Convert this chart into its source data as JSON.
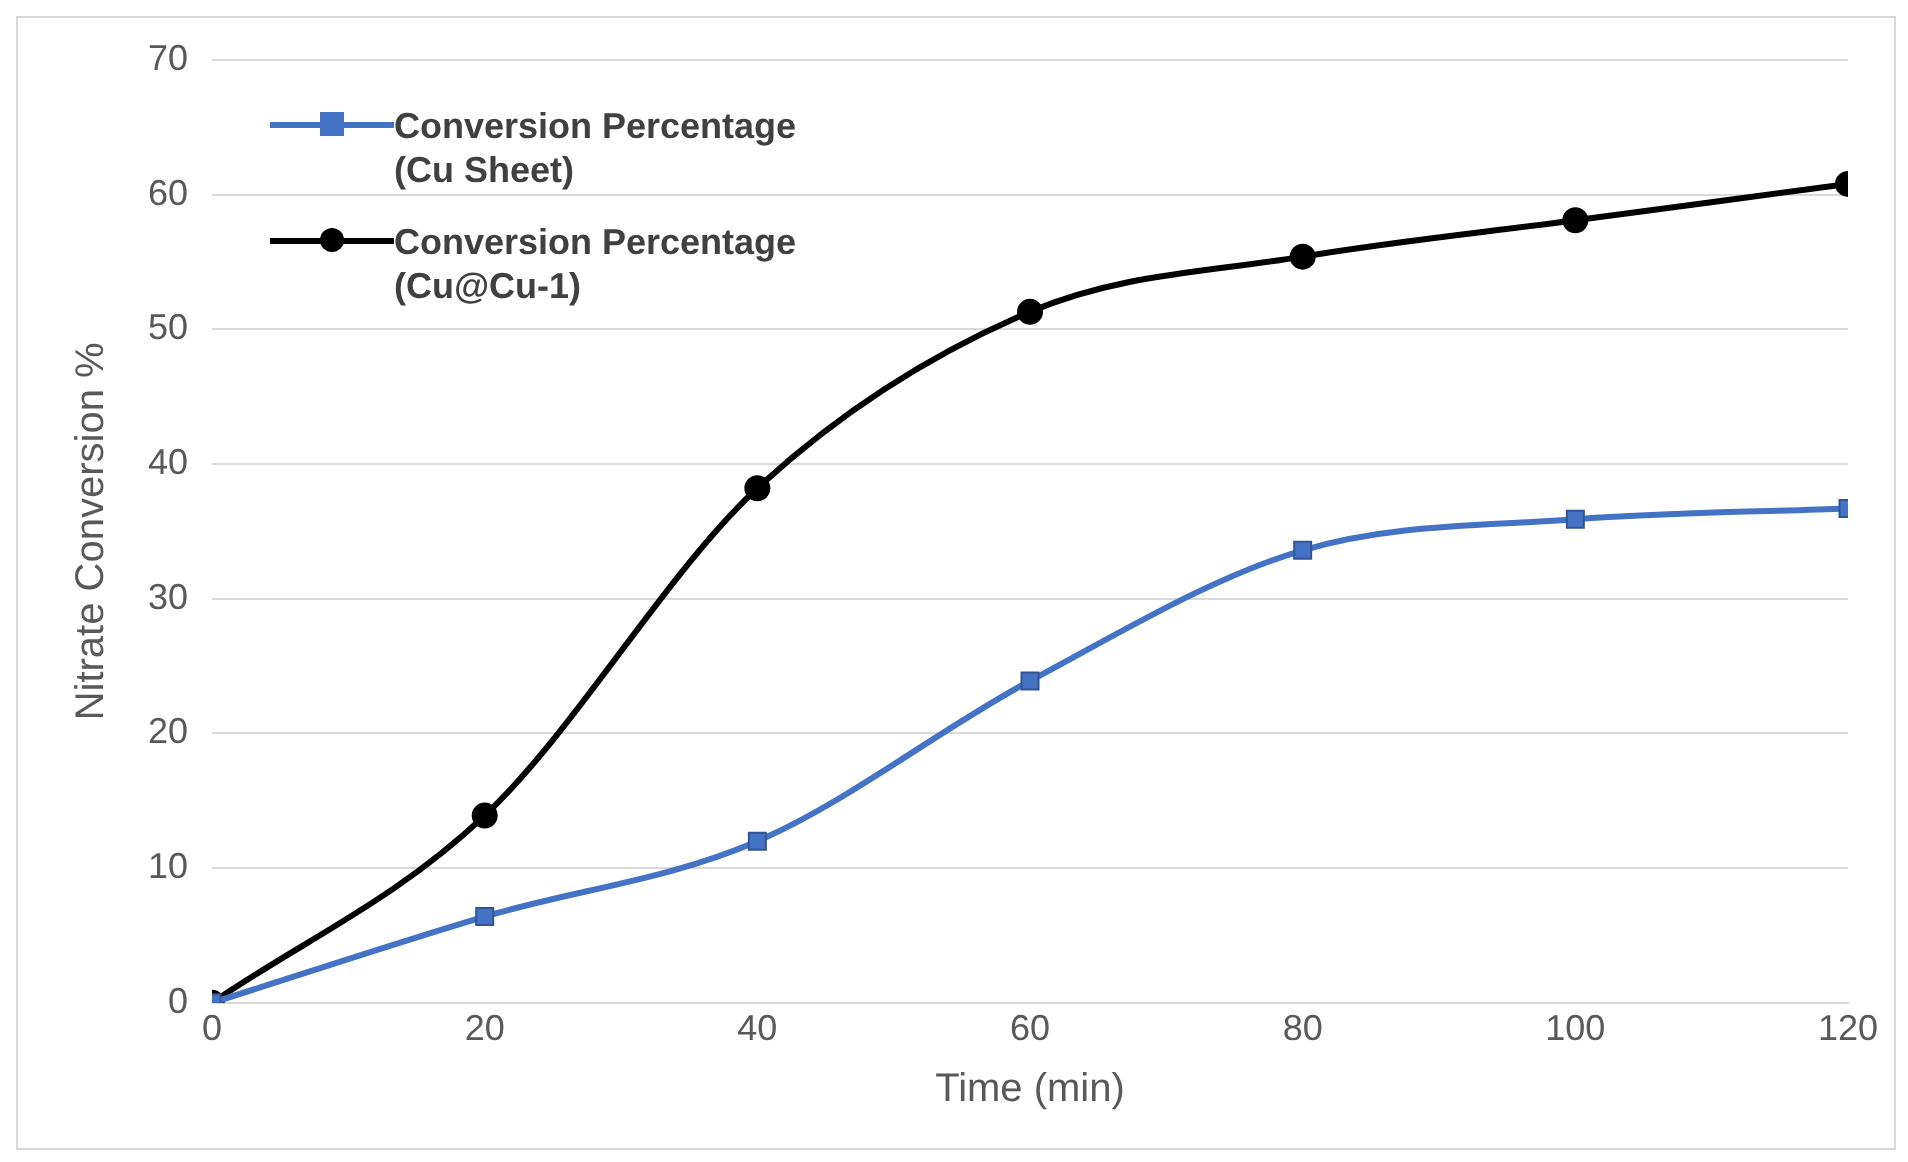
{
  "chart_data": {
    "type": "line",
    "xlabel": "Time (min)",
    "ylabel": "Nitrate Conversion %",
    "x": [
      0,
      20,
      40,
      60,
      80,
      100,
      120
    ],
    "xlim": [
      0,
      120
    ],
    "xticks": [
      0,
      20,
      40,
      60,
      80,
      100,
      120
    ],
    "ylim": [
      0,
      70
    ],
    "yticks": [
      0,
      10,
      20,
      30,
      40,
      50,
      60,
      70
    ],
    "grid": "y",
    "legend": "top left",
    "series": [
      {
        "name": "Conversion Percentage (Cu Sheet)",
        "color": "#4472c4",
        "marker": "square",
        "values": [
          0,
          6.4,
          12,
          23.9,
          33.6,
          35.9,
          36.7
        ]
      },
      {
        "name": "Conversion Percentage (Cu@Cu-1)",
        "color": "#000000",
        "marker": "circle",
        "values": [
          0,
          13.9,
          38.2,
          51.3,
          55.4,
          58.1,
          60.8
        ]
      }
    ]
  }
}
